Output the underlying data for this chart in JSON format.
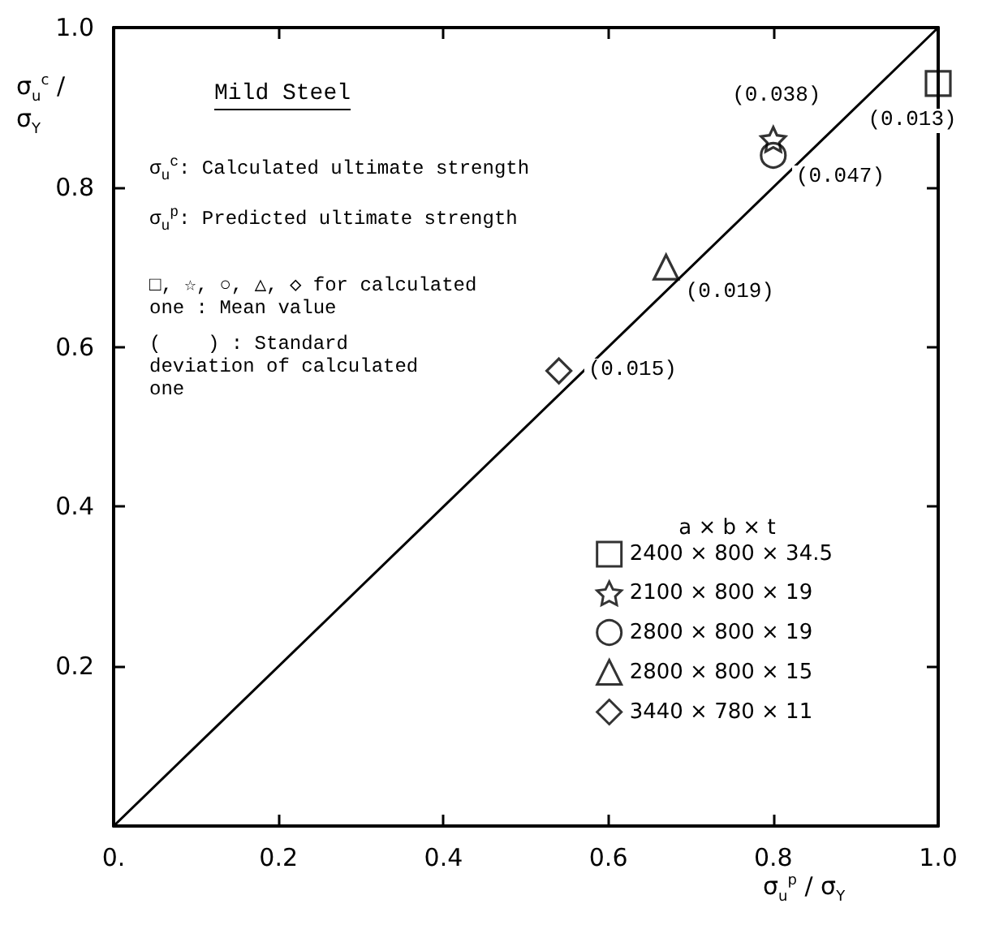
{
  "chart_data": {
    "type": "scatter",
    "title": "Mild Steel",
    "xlabel": "σ$_{u}$$^{p}$ / σ$_{Y}$",
    "ylabel": "σ$_{u}$$^{c}$ / σ$_{Y}$",
    "legend_title": "a × b × t",
    "xlim": [
      0,
      1
    ],
    "ylim": [
      0,
      1
    ],
    "xticks": [
      {
        "value": 0,
        "label": "0."
      },
      0.2,
      0.4,
      0.6,
      0.8,
      {
        "value": 1,
        "label": "1.0"
      }
    ],
    "yticks": [
      {
        "value": 0,
        "label": null
      },
      0.2,
      0.4,
      0.6,
      0.8,
      {
        "value": 1,
        "label": "1.0"
      }
    ],
    "grid": false,
    "legend": "bottom right",
    "series": [
      {
        "type": "line",
        "x": [
          0,
          1
        ],
        "values": [
          0,
          1
        ],
        "color": "#000000",
        "marker": "none",
        "line_style": "solid"
      },
      {
        "name": "2400 × 800 × 34.5",
        "x": [
          1.0
        ],
        "values": [
          0.93
        ],
        "color": "#000000",
        "marker": "square"
      },
      {
        "name": "2100 × 800 × 19",
        "x": [
          0.8
        ],
        "values": [
          0.86
        ],
        "color": "#000000",
        "marker": "star"
      },
      {
        "name": "2800 × 800 × 19",
        "x": [
          0.8
        ],
        "values": [
          0.84
        ],
        "color": "#000000",
        "marker": "circle"
      },
      {
        "name": "2800 × 800 × 15",
        "x": [
          0.67
        ],
        "values": [
          0.7
        ],
        "color": "#000000",
        "marker": "triangle"
      },
      {
        "name": "3440 × 780 × 11",
        "x": [
          0.54
        ],
        "values": [
          0.57
        ],
        "color": "#000000",
        "marker": "diamond"
      }
    ],
    "annotations": [
      "σ$_{u}$$^{c}$: Calculated ultimate strength",
      "σ$_{u}$$^{p}$: Predicted ultimate strength",
      "□, ☆, ○, △, ◇ for calculated one : Mean value",
      "(    ) : Standard deviation of calculated one",
      {
        "text": "(0.013)",
        "x": 1.0,
        "y": 0.93
      },
      {
        "text": "(0.038)",
        "x": 0.8,
        "y": 0.86
      },
      {
        "text": "(0.047)",
        "x": 0.8,
        "y": 0.84
      },
      {
        "text": "(0.019)",
        "x": 0.67,
        "y": 0.7
      },
      {
        "text": "(0.015)",
        "x": 0.54,
        "y": 0.57
      }
    ]
  }
}
